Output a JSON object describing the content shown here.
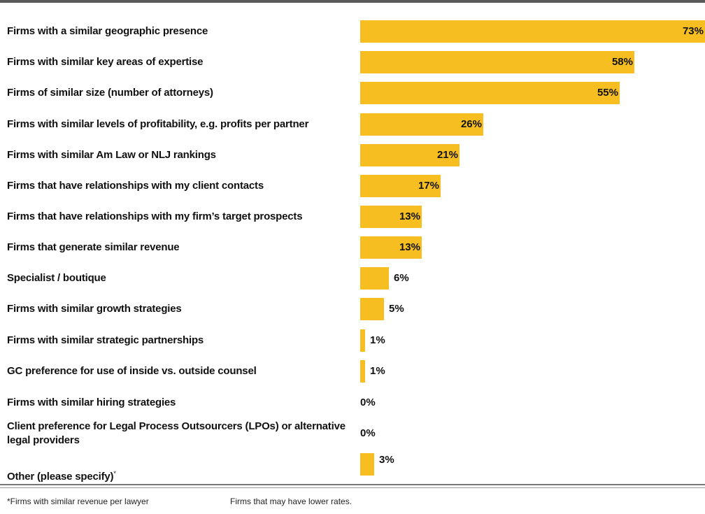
{
  "chart_data": {
    "type": "bar",
    "orientation": "horizontal",
    "categories": [
      "Firms with a similar geographic presence",
      "Firms with similar key areas of expertise",
      "Firms of similar size (number of attorneys)",
      "Firms with similar levels of profitability, e.g. profits per partner",
      "Firms with similar Am Law or NLJ rankings",
      "Firms that have relationships with my client contacts",
      "Firms that have relationships with my firm’s target prospects",
      "Firms that generate similar revenue",
      "Specialist / boutique",
      "Firms with similar growth strategies",
      "Firms with similar strategic partnerships",
      "GC preference for use of inside vs. outside counsel",
      "Firms with similar hiring strategies",
      "Client preference for Legal Process Outsourcers (LPOs) or alternative legal providers",
      "Other (please specify)"
    ],
    "values": [
      73,
      58,
      55,
      26,
      21,
      17,
      13,
      13,
      6,
      5,
      1,
      1,
      0,
      0,
      3
    ],
    "value_labels": [
      "73%",
      "58%",
      "55%",
      "26%",
      "21%",
      "17%",
      "13%",
      "13%",
      "6%",
      "5%",
      "1%",
      "1%",
      "0%",
      "0%",
      "3%"
    ],
    "label_markers": [
      "",
      "",
      "",
      "",
      "",
      "",
      "",
      "",
      "",
      "",
      "",
      "",
      "",
      "",
      "*"
    ],
    "xlim": [
      0,
      73
    ],
    "grid": false,
    "bar_color": "#f6be20"
  },
  "footnotes": {
    "left": "*Firms with similar revenue per lawyer",
    "right": "Firms that may have lower rates."
  }
}
